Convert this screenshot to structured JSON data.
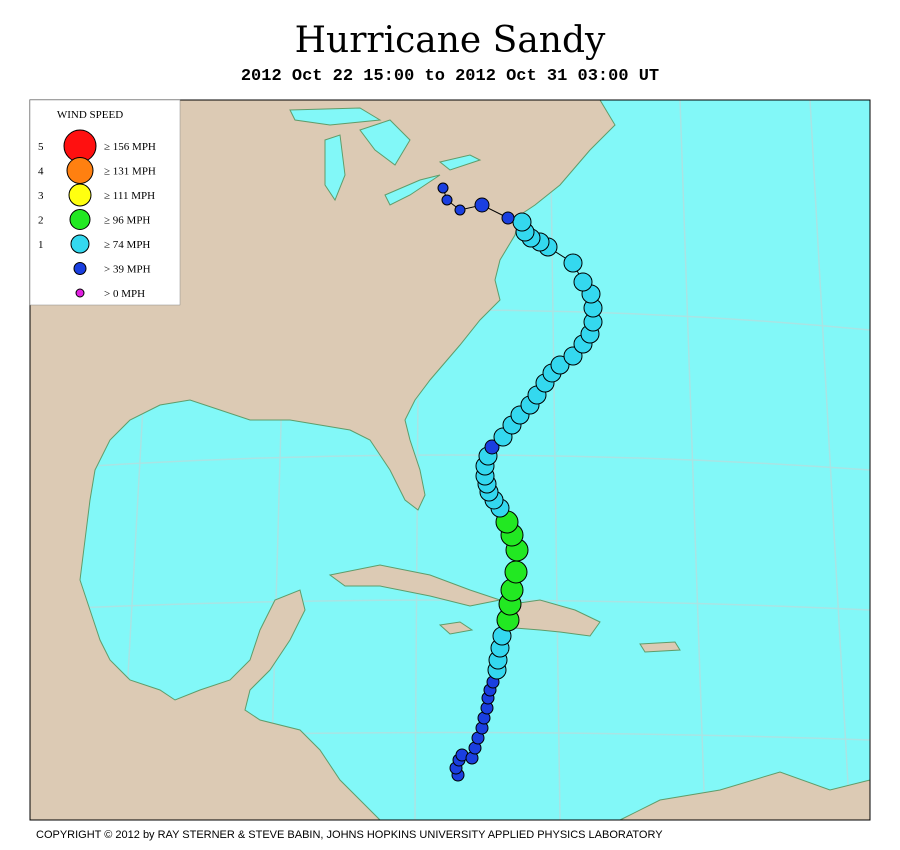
{
  "header": {
    "title": "Hurricane Sandy",
    "subtitle": "2012 Oct 22 15:00 to 2012 Oct 31 03:00 UT"
  },
  "legend": {
    "title": "WIND SPEED",
    "items": [
      {
        "category": 5,
        "label": "≥ 156 MPH",
        "color": "#ff1010"
      },
      {
        "category": 4,
        "label": "≥ 131 MPH",
        "color": "#ff8010"
      },
      {
        "category": 3,
        "label": "≥ 111 MPH",
        "color": "#ffff10"
      },
      {
        "category": 2,
        "label": "≥ 96 MPH",
        "color": "#22e822"
      },
      {
        "category": 1,
        "label": "≥ 74 MPH",
        "color": "#34d8ef"
      },
      {
        "label": "> 39 MPH",
        "color": "#1a3fe0"
      },
      {
        "label": "> 0 MPH",
        "color": "#e020e0"
      }
    ]
  },
  "footer": {
    "copyright": "COPYRIGHT © 2012 by RAY STERNER & STEVE BABIN, JOHNS HOPKINS UNIVERSITY APPLIED PHYSICS LABORATORY"
  }
}
